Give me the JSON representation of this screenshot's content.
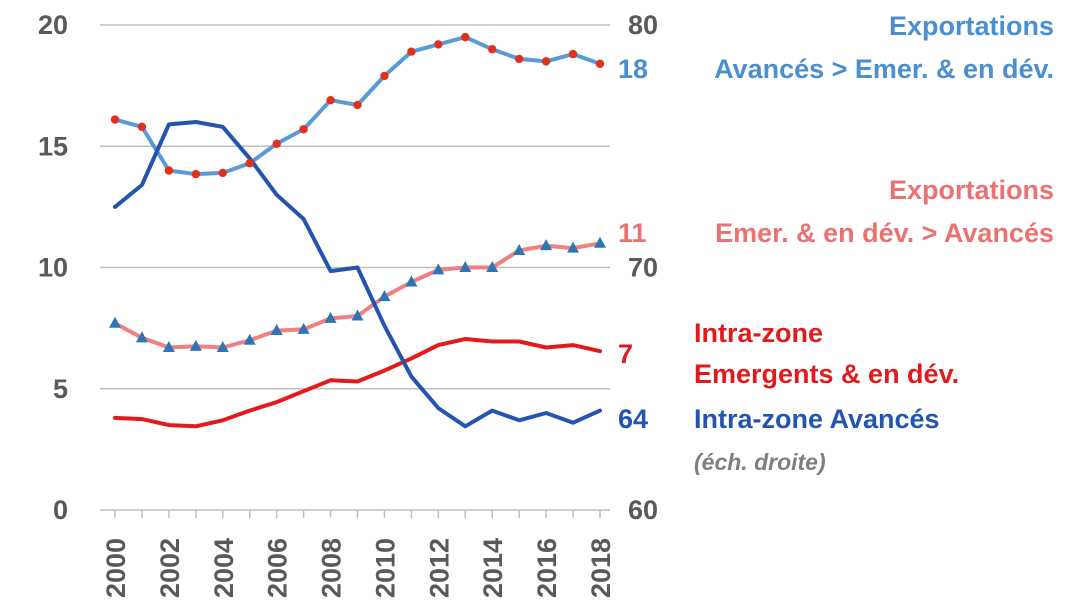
{
  "chart_data": {
    "type": "line",
    "x": [
      2000,
      2001,
      2002,
      2003,
      2004,
      2005,
      2006,
      2007,
      2008,
      2009,
      2010,
      2011,
      2012,
      2013,
      2014,
      2015,
      2016,
      2017,
      2018
    ],
    "x_tick_labels": [
      "2000",
      "2002",
      "2004",
      "2006",
      "2008",
      "2010",
      "2012",
      "2014",
      "2016",
      "2018"
    ],
    "y_left": {
      "ticks": [
        "0",
        "5",
        "10",
        "15",
        "20"
      ],
      "ylim": [
        0,
        20
      ]
    },
    "y_right": {
      "ticks": [
        "60",
        "70",
        "80"
      ],
      "ylim": [
        60,
        80
      ]
    },
    "grid": true,
    "series": [
      {
        "name": "Exportations Avancés > Emer. & en dév.",
        "label_lines": [
          "Exportations",
          "Avancés > Emer. & en dév."
        ],
        "end_value": "18",
        "axis": "left",
        "color": "#5b9bd5",
        "marker": "dot",
        "marker_color": "#e0301e",
        "values": [
          16.1,
          15.8,
          14.0,
          13.85,
          13.9,
          14.3,
          15.1,
          15.7,
          16.9,
          16.7,
          17.9,
          18.9,
          19.2,
          19.5,
          19.0,
          18.6,
          18.5,
          18.8,
          18.4
        ]
      },
      {
        "name": "Exportations Emer. & en dév. > Avancés",
        "label_lines": [
          "Exportations",
          "Emer. & en dév. > Avancés"
        ],
        "end_value": "11",
        "axis": "left",
        "color": "#f08080",
        "marker": "triangle",
        "marker_color": "#2e75b6",
        "values": [
          7.7,
          7.1,
          6.7,
          6.75,
          6.7,
          7.0,
          7.4,
          7.45,
          7.9,
          8.0,
          8.8,
          9.4,
          9.9,
          10.0,
          10.0,
          10.7,
          10.9,
          10.8,
          11.0
        ]
      },
      {
        "name": "Intra-zone Emergents & en dév.",
        "label_lines": [
          "Intra-zone",
          "Emergents & en dév."
        ],
        "end_value": "7",
        "axis": "left",
        "color": "#e31a1c",
        "marker": "none",
        "values": [
          3.8,
          3.75,
          3.5,
          3.45,
          3.7,
          4.1,
          4.45,
          4.9,
          5.35,
          5.3,
          5.75,
          6.25,
          6.8,
          7.05,
          6.95,
          6.95,
          6.7,
          6.8,
          6.55
        ]
      },
      {
        "name": "Intra-zone Avancés",
        "label_lines": [
          "Intra-zone Avancés"
        ],
        "note": "(éch. droite)",
        "end_value": "64",
        "axis": "right",
        "color": "#2354b0",
        "marker": "none",
        "values": [
          72.5,
          73.4,
          75.9,
          76.0,
          75.8,
          74.5,
          73.0,
          72.0,
          69.85,
          70.0,
          67.6,
          65.5,
          64.2,
          63.45,
          64.1,
          63.7,
          64.0,
          63.6,
          64.1
        ]
      }
    ]
  }
}
